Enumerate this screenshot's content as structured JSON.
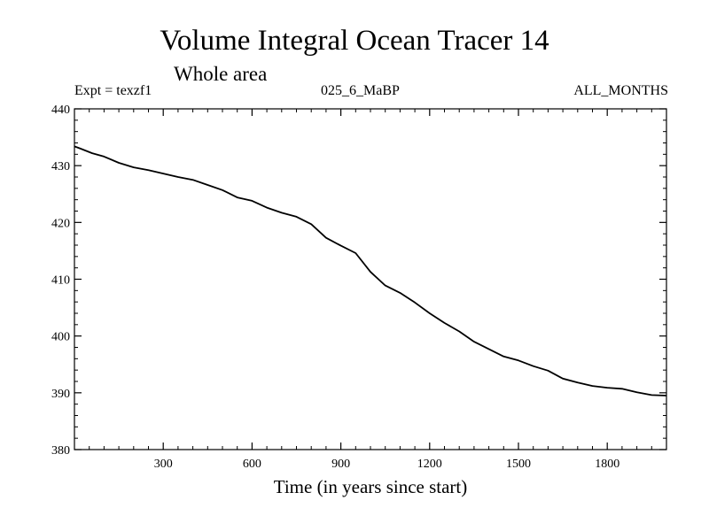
{
  "chart_data": {
    "type": "line",
    "title": "Volume Integral Ocean Tracer 14",
    "subtitle": "Whole area",
    "experiment": "Expt = texzf1",
    "run_label": "025_6_MaBP",
    "period_label": "ALL_MONTHS",
    "xlabel": "Time (in years since start)",
    "ylabel": "",
    "xlim": [
      0,
      2000
    ],
    "ylim": [
      380,
      440
    ],
    "x_ticks": [
      300,
      600,
      900,
      1200,
      1500,
      1800
    ],
    "y_ticks": [
      380,
      390,
      400,
      410,
      420,
      430,
      440
    ],
    "series": [
      {
        "name": "Volume integral",
        "color": "#000000",
        "x": [
          0,
          20,
          60,
          100,
          150,
          200,
          250,
          300,
          350,
          400,
          450,
          500,
          550,
          600,
          650,
          700,
          750,
          800,
          850,
          900,
          950,
          1000,
          1050,
          1100,
          1150,
          1200,
          1250,
          1300,
          1350,
          1400,
          1450,
          1500,
          1550,
          1600,
          1650,
          1700,
          1750,
          1800,
          1850,
          1900,
          1950,
          2000
        ],
        "values": [
          433.4,
          433.0,
          432.2,
          431.6,
          430.5,
          429.7,
          429.2,
          428.6,
          428.0,
          427.5,
          426.6,
          425.7,
          424.4,
          423.8,
          422.6,
          421.7,
          421.0,
          419.7,
          417.3,
          415.9,
          414.6,
          411.3,
          408.9,
          407.6,
          405.9,
          404.0,
          402.3,
          400.8,
          399.0,
          397.7,
          396.4,
          395.7,
          394.7,
          393.9,
          392.5,
          391.8,
          391.2,
          390.9,
          390.7,
          390.1,
          389.6,
          389.5
        ]
      }
    ]
  }
}
